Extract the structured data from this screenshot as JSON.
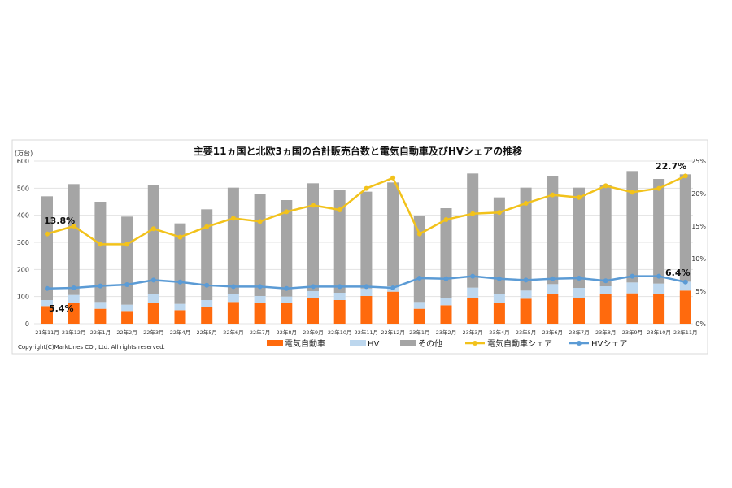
{
  "chart_data": {
    "type": "bar",
    "title": "主要11ヵ国と北欧3ヵ国の合計販売台数と電気自動車及びHVシェアの推移",
    "ylabel": "(万台)",
    "ylim": [
      0,
      600
    ],
    "yticks": [
      "0",
      "100",
      "200",
      "300",
      "400",
      "500",
      "600"
    ],
    "y2lim": [
      0,
      25
    ],
    "y2ticks": [
      "0%",
      "5%",
      "10%",
      "15%",
      "20%",
      "25%"
    ],
    "grid": true,
    "legend_position": "bottom",
    "categories": [
      "21年11月",
      "21年12月",
      "22年1月",
      "22年2月",
      "22年3月",
      "22年4月",
      "22年5月",
      "22年6月",
      "22年7月",
      "22年8月",
      "22年9月",
      "22年10月",
      "22年11月",
      "22年12月",
      "23年1月",
      "23年2月",
      "23年3月",
      "23年4月",
      "23年5月",
      "23年6月",
      "23年7月",
      "23年8月",
      "23年9月",
      "23年10月",
      "23年11月"
    ],
    "series": [
      {
        "name": "電気自動車",
        "type": "stacked-bar",
        "axis": "left",
        "color": "#ff6a0d",
        "values": [
          65,
          78,
          55,
          47,
          75,
          50,
          62,
          80,
          75,
          78,
          93,
          87,
          102,
          118,
          55,
          68,
          95,
          78,
          92,
          108,
          96,
          108,
          112,
          110,
          122
        ]
      },
      {
        "name": "HV",
        "type": "stacked-bar",
        "axis": "left",
        "color": "#bdd7ee",
        "values": [
          22,
          28,
          25,
          23,
          35,
          23,
          25,
          30,
          27,
          22,
          27,
          27,
          28,
          20,
          25,
          25,
          38,
          32,
          30,
          38,
          36,
          30,
          40,
          38,
          33
        ]
      },
      {
        "name": "その他",
        "type": "stacked-bar",
        "axis": "left",
        "color": "#a5a5a5",
        "values": [
          383,
          409,
          370,
          325,
          400,
          297,
          335,
          392,
          378,
          356,
          398,
          378,
          357,
          383,
          317,
          333,
          421,
          356,
          380,
          400,
          370,
          372,
          411,
          386,
          396
        ]
      },
      {
        "name": "電気自動車シェア",
        "type": "line",
        "axis": "right",
        "color": "#f2c21b",
        "values": [
          13.8,
          15.0,
          12.2,
          12.2,
          14.6,
          13.3,
          14.9,
          16.2,
          15.7,
          17.2,
          18.2,
          17.5,
          20.8,
          22.4,
          13.8,
          16.0,
          16.9,
          17.1,
          18.5,
          19.8,
          19.4,
          21.2,
          20.2,
          20.8,
          22.7
        ]
      },
      {
        "name": "HVシェア",
        "type": "line",
        "axis": "right",
        "color": "#5b9bd5",
        "values": [
          5.4,
          5.5,
          5.8,
          6.0,
          6.7,
          6.4,
          5.9,
          5.7,
          5.7,
          5.4,
          5.7,
          5.7,
          5.7,
          5.5,
          7.0,
          6.9,
          7.3,
          6.9,
          6.7,
          6.9,
          7.0,
          6.6,
          7.3,
          7.3,
          6.4
        ]
      }
    ],
    "annotations": [
      "13.8%",
      "5.4%",
      "22.7%",
      "6.4%"
    ]
  },
  "copyright": "Copyright(C)MarkLines CO., Ltd. All rights reserved."
}
